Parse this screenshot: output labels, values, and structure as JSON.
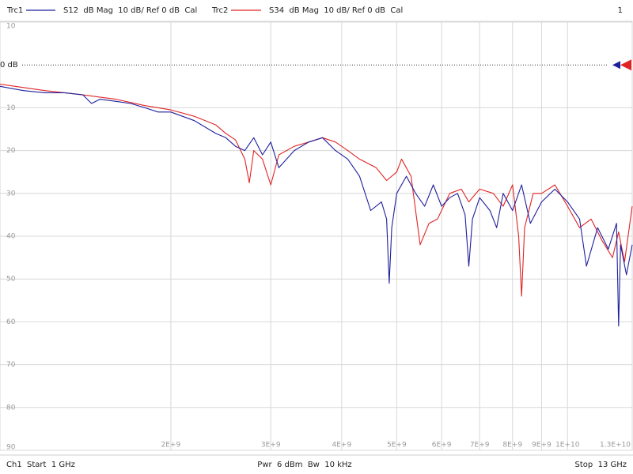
{
  "chart_data": {
    "type": "line",
    "x_scale": "log",
    "grid": true,
    "channel_number": "1",
    "footer": [
      "Ch1  Start  1 GHz",
      "Pwr  6 dBm  Bw  10 kHz",
      "Stop  13 GHz"
    ],
    "ref_level": {
      "value": 0,
      "label": "0 dB"
    },
    "xlim": [
      1000000000.0,
      13000000000.0
    ],
    "xticks": [
      {
        "value": 2000000000.0,
        "label": "2E+9"
      },
      {
        "value": 3000000000.0,
        "label": "3E+9"
      },
      {
        "value": 4000000000.0,
        "label": "4E+9"
      },
      {
        "value": 5000000000.0,
        "label": "5E+9"
      },
      {
        "value": 6000000000.0,
        "label": "6E+9"
      },
      {
        "value": 7000000000.0,
        "label": "7E+9"
      },
      {
        "value": 8000000000.0,
        "label": "8E+9"
      },
      {
        "value": 9000000000.0,
        "label": "9E+9"
      },
      {
        "value": 10000000000.0,
        "label": "1E+10"
      },
      {
        "value": 13000000000.0,
        "label": "1.3E+10"
      }
    ],
    "ylim": [
      -90,
      10
    ],
    "yticks": [
      10,
      {
        "value": -10,
        "label": "10"
      },
      {
        "value": -20,
        "label": "20"
      },
      {
        "value": -30,
        "label": "30"
      },
      {
        "value": -40,
        "label": "40"
      },
      {
        "value": -50,
        "label": "50"
      },
      {
        "value": -60,
        "label": "60"
      },
      {
        "value": -70,
        "label": "70"
      },
      {
        "value": -80,
        "label": "80"
      },
      {
        "value": -90,
        "label": "90"
      }
    ],
    "series": [
      {
        "name": "Trc1",
        "description": "S12  dB Mag  10 dB/ Ref 0 dB  Cal",
        "color": "#1f1f9e",
        "x": [
          1000000000.0,
          1100000000.0,
          1200000000.0,
          1300000000.0,
          1400000000.0,
          1450000000.0,
          1500000000.0,
          1600000000.0,
          1700000000.0,
          1800000000.0,
          1900000000.0,
          2000000000.0,
          2200000000.0,
          2400000000.0,
          2500000000.0,
          2600000000.0,
          2700000000.0,
          2800000000.0,
          2900000000.0,
          3000000000.0,
          3100000000.0,
          3300000000.0,
          3500000000.0,
          3700000000.0,
          3900000000.0,
          4100000000.0,
          4300000000.0,
          4500000000.0,
          4700000000.0,
          4800000000.0,
          4850000000.0,
          4900000000.0,
          5000000000.0,
          5200000000.0,
          5400000000.0,
          5600000000.0,
          5800000000.0,
          6000000000.0,
          6200000000.0,
          6400000000.0,
          6600000000.0,
          6700000000.0,
          6800000000.0,
          7000000000.0,
          7300000000.0,
          7500000000.0,
          7700000000.0,
          8000000000.0,
          8300000000.0,
          8600000000.0,
          9000000000.0,
          9500000000.0,
          10000000000.0,
          10500000000.0,
          10800000000.0,
          11300000000.0,
          11800000000.0,
          12200000000.0,
          12300000000.0,
          12400000000.0,
          12700000000.0,
          13000000000.0
        ],
        "values": [
          -5,
          -6,
          -6.5,
          -6.5,
          -7,
          -9,
          -8,
          -8.5,
          -9,
          -10,
          -11,
          -11,
          -13,
          -16,
          -17,
          -19,
          -20,
          -17,
          -21,
          -18,
          -24,
          -20,
          -18,
          -17,
          -20,
          -22,
          -26,
          -34,
          -32,
          -36,
          -51,
          -38,
          -30,
          -26,
          -30,
          -33,
          -28,
          -33,
          -31,
          -30,
          -35,
          -47,
          -36,
          -31,
          -34,
          -38,
          -30,
          -34,
          -28,
          -37,
          -32,
          -29,
          -32,
          -36,
          -47,
          -38,
          -43,
          -37,
          -61,
          -42,
          -49,
          -42
        ]
      },
      {
        "name": "Trc2",
        "description": "S34  dB Mag  10 dB/ Ref 0 dB  Cal",
        "color": "#e02424",
        "x": [
          1000000000.0,
          1200000000.0,
          1400000000.0,
          1600000000.0,
          1800000000.0,
          2000000000.0,
          2200000000.0,
          2400000000.0,
          2500000000.0,
          2600000000.0,
          2700000000.0,
          2750000000.0,
          2800000000.0,
          2900000000.0,
          3000000000.0,
          3100000000.0,
          3300000000.0,
          3500000000.0,
          3700000000.0,
          3900000000.0,
          4100000000.0,
          4300000000.0,
          4600000000.0,
          4800000000.0,
          5000000000.0,
          5100000000.0,
          5300000000.0,
          5500000000.0,
          5700000000.0,
          5900000000.0,
          6200000000.0,
          6500000000.0,
          6700000000.0,
          7000000000.0,
          7400000000.0,
          7700000000.0,
          8000000000.0,
          8200000000.0,
          8300000000.0,
          8400000000.0,
          8700000000.0,
          9000000000.0,
          9500000000.0,
          10000000000.0,
          10500000000.0,
          11000000000.0,
          11500000000.0,
          12000000000.0,
          12300000000.0,
          12600000000.0,
          13000000000.0
        ],
        "values": [
          -4.5,
          -6,
          -7,
          -8,
          -9.5,
          -10.5,
          -12,
          -14,
          -16,
          -17.5,
          -22,
          -27.5,
          -20,
          -22,
          -28,
          -21,
          -19,
          -18,
          -17,
          -18,
          -20,
          -22,
          -24,
          -27,
          -25,
          -22,
          -26,
          -42,
          -37,
          -36,
          -30,
          -29,
          -32,
          -29,
          -30,
          -33,
          -28,
          -40,
          -54,
          -38,
          -30,
          -30,
          -28,
          -33,
          -38,
          -36,
          -41,
          -45,
          -39,
          -46,
          -33
        ]
      }
    ]
  }
}
